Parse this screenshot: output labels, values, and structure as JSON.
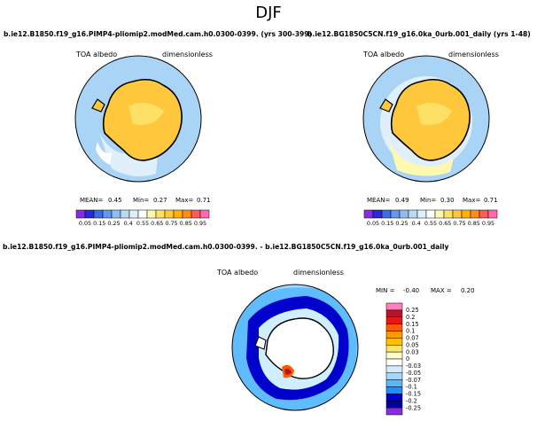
{
  "page": {
    "title": "DJF"
  },
  "panels": [
    {
      "id": "left",
      "case_title": "b.ie12.B1850.f19_g16.PIMP4-pliomip2.modMed.cam.h0.0300-0399. (yrs 300-399)",
      "variable_label": "TOA albedo",
      "units_label": "dimensionless",
      "stats": {
        "mean_label": "MEAN=",
        "mean": "0.45",
        "min_label": "Min=",
        "min": "0.27",
        "max_label": "Max=",
        "max": "0.71"
      }
    },
    {
      "id": "right",
      "case_title": "b.ie12.BG1850C5CN.f19_g16.0ka_0urb.001_daily (yrs 1-48)",
      "variable_label": "TOA albedo",
      "units_label": "dimensionless",
      "stats": {
        "mean_label": "MEAN=",
        "mean": "0.49",
        "min_label": "Min=",
        "min": "0.30",
        "max_label": "Max=",
        "max": "0.71"
      }
    },
    {
      "id": "diff",
      "case_title": "b.ie12.B1850.f19_g16.PIMP4-pliomip2.modMed.cam.h0.0300-0399. - b.ie12.BG1850C5CN.f19_g16.0ka_0urb.001_daily",
      "variable_label": "TOA albedo",
      "units_label": "dimensionless",
      "stats": {
        "min_label": "MIN =",
        "min": "-0.40",
        "max_label": "MAX =",
        "max": "0.20"
      }
    }
  ],
  "chart_data": [
    {
      "type": "heatmap",
      "projection": "south-polar-stereographic",
      "legend_placement": "bottom",
      "colorbar_ticks": [
        "0.05",
        "0.15",
        "0.25",
        "0.4",
        "0.55",
        "0.65",
        "0.75",
        "0.85",
        "0.95"
      ],
      "colorbar_colors": [
        "#8a2be2",
        "#2929d6",
        "#3b6fe0",
        "#5f98ec",
        "#8fbcf2",
        "#b8daf6",
        "#e0f0fb",
        "#ffffff",
        "#fff9b0",
        "#ffe066",
        "#ffc83c",
        "#ffb000",
        "#ff8c1a",
        "#ff5a5a",
        "#ff69b4"
      ]
    },
    {
      "type": "heatmap",
      "projection": "south-polar-stereographic",
      "legend_placement": "bottom",
      "colorbar_ticks": [
        "0.05",
        "0.15",
        "0.25",
        "0.4",
        "0.55",
        "0.65",
        "0.75",
        "0.85",
        "0.95"
      ],
      "colorbar_colors": [
        "#8a2be2",
        "#2929d6",
        "#3b6fe0",
        "#5f98ec",
        "#8fbcf2",
        "#b8daf6",
        "#e0f0fb",
        "#ffffff",
        "#fff9b0",
        "#ffe066",
        "#ffc83c",
        "#ffb000",
        "#ff8c1a",
        "#ff5a5a",
        "#ff69b4"
      ]
    },
    {
      "type": "heatmap",
      "projection": "south-polar-stereographic",
      "legend_placement": "right",
      "colorbar_ticks": [
        "0.25",
        "0.2",
        "0.15",
        "0.1",
        "0.07",
        "0.05",
        "0.03",
        "0",
        "-0.03",
        "-0.05",
        "-0.07",
        "-0.1",
        "-0.15",
        "-0.2",
        "-0.25"
      ],
      "colorbar_colors": [
        "#ff7fbf",
        "#b3162b",
        "#e8161b",
        "#ff5a00",
        "#ff9900",
        "#ffc000",
        "#ffe36b",
        "#fffbd0",
        "#ffffff",
        "#cfeeff",
        "#9fd9ff",
        "#58b8ff",
        "#1f8fff",
        "#0000cc",
        "#00009a",
        "#8a2be2"
      ]
    }
  ]
}
